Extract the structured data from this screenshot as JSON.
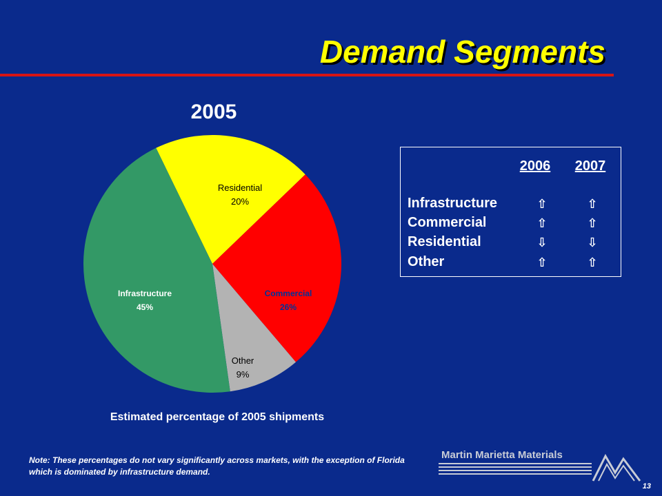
{
  "header": {
    "title": "Demand Segments"
  },
  "chart_data": {
    "type": "pie",
    "title": "2005",
    "caption": "Estimated percentage of 2005 shipments",
    "slices": [
      {
        "label": "Residential",
        "value_label": "20%",
        "value": 20,
        "color": "#ffff00"
      },
      {
        "label": "Commercial",
        "value_label": "26%",
        "value": 26,
        "color": "#ff0000"
      },
      {
        "label": "Other",
        "value_label": "9%",
        "value": 9,
        "color": "#b3b3b3"
      },
      {
        "label": "Infrastructure",
        "value_label": "45%",
        "value": 45,
        "color": "#339966"
      }
    ]
  },
  "outlook": {
    "years": [
      "2006",
      "2007"
    ],
    "rows": [
      {
        "segment": "Infrastructure",
        "trend_2006": "up",
        "trend_2007": "up"
      },
      {
        "segment": "Commercial",
        "trend_2006": "up",
        "trend_2007": "up"
      },
      {
        "segment": "Residential",
        "trend_2006": "down",
        "trend_2007": "down"
      },
      {
        "segment": "Other",
        "trend_2006": "up",
        "trend_2007": "up"
      }
    ],
    "arrows": {
      "up": "⇧",
      "down": "⇩"
    }
  },
  "footer": {
    "note": "Note:  These percentages do not vary significantly across markets, with the exception of Florida which is dominated by infrastructure demand.",
    "company": "Martin Marietta Materials",
    "page_number": "13"
  }
}
